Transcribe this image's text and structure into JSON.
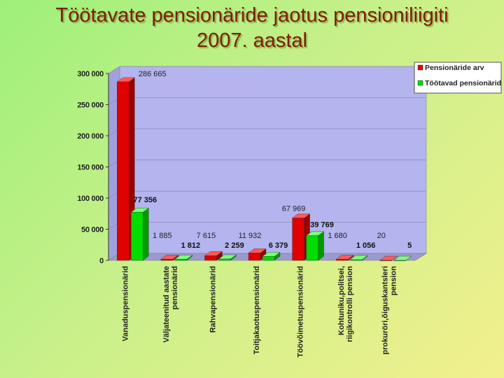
{
  "slide": {
    "title_line1": "Töötavate pensionäride jaotus pensioniliigiti",
    "title_line2": "2007. aastal"
  },
  "colors": {
    "series1": "#e00000",
    "series2": "#00dd00",
    "plot_wall": "#b4b4ee",
    "floor": "#9a9ad0"
  },
  "chart_data": {
    "type": "bar",
    "title": "",
    "xlabel": "",
    "ylabel": "",
    "ylim": [
      0,
      300000
    ],
    "yticks": [
      0,
      50000,
      100000,
      150000,
      200000,
      250000,
      300000
    ],
    "ytick_labels": [
      "0",
      "50 000",
      "100 000",
      "150 000",
      "200 000",
      "250 000",
      "300 000"
    ],
    "grid": true,
    "legend_position": "top-right",
    "categories": [
      [
        "Vanaduspensionärid"
      ],
      [
        "Väljateenitud aastate",
        "pensionärid"
      ],
      [
        "Rahvapensionärid"
      ],
      [
        "Toitjakaotuspensionärid"
      ],
      [
        "Töövõimetuspensionärid"
      ],
      [
        "Kohtuniku,politsei,",
        "riigikontrolli pension"
      ],
      [
        "prokuröri,õiguskantsleri",
        "pension"
      ]
    ],
    "series": [
      {
        "name": "Pensionäride arv",
        "values": [
          286665,
          1885,
          7615,
          11932,
          67969,
          1680,
          20
        ],
        "labels": [
          "286 665",
          "1 885",
          "7 615",
          "11 932",
          "67 969",
          "1 680",
          "20"
        ]
      },
      {
        "name": "Töötavad pensionärid",
        "values": [
          77356,
          1812,
          2259,
          6379,
          39769,
          1056,
          5
        ],
        "labels": [
          "77 356",
          "1 812",
          "2 259",
          "6 379",
          "39 769",
          "1 056",
          "5"
        ]
      }
    ]
  }
}
